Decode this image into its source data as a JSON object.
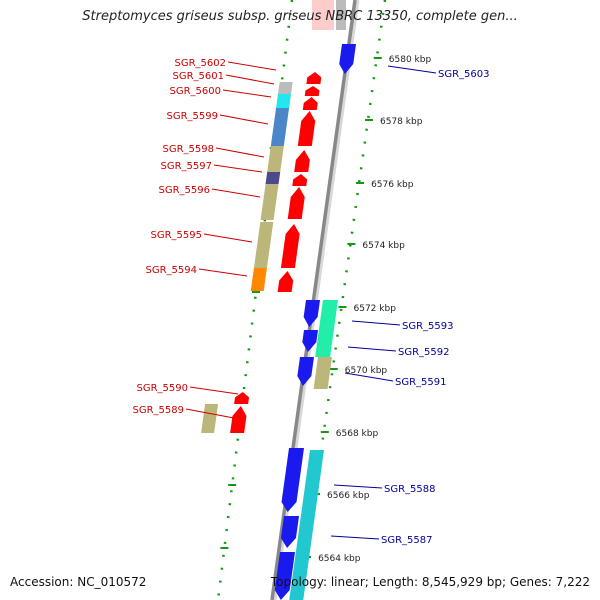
{
  "title": "Streptomyces griseus subsp. griseus NBRC 13350, complete gen...",
  "footer": {
    "accession": "Accession: NC_010572",
    "topology": "Topology: linear; Length: 8,545,929 bp; Genes: 7,222"
  },
  "scale_labels": [
    "6580 kbp",
    "6578 kbp",
    "6576 kbp",
    "6574 kbp",
    "6572 kbp",
    "6570 kbp",
    "6568 kbp",
    "6566 kbp",
    "6564 kbp"
  ],
  "colors": {
    "forward_label": "#cc0000",
    "reverse_label": "#000099",
    "forward_gene": "#ff0000",
    "reverse_gene": "#1a1aee",
    "axis": "#888888",
    "ruler": "#119911"
  },
  "genes_forward": [
    {
      "name": "SGR_5602"
    },
    {
      "name": "SGR_5601"
    },
    {
      "name": "SGR_5600"
    },
    {
      "name": "SGR_5599"
    },
    {
      "name": "SGR_5598"
    },
    {
      "name": "SGR_5597"
    },
    {
      "name": "SGR_5596"
    },
    {
      "name": "SGR_5595"
    },
    {
      "name": "SGR_5594"
    },
    {
      "name": "SGR_5590"
    },
    {
      "name": "SGR_5589"
    }
  ],
  "genes_reverse": [
    {
      "name": "SGR_5603"
    },
    {
      "name": "SGR_5593"
    },
    {
      "name": "SGR_5592"
    },
    {
      "name": "SGR_5591"
    },
    {
      "name": "SGR_5588"
    },
    {
      "name": "SGR_5587"
    }
  ]
}
